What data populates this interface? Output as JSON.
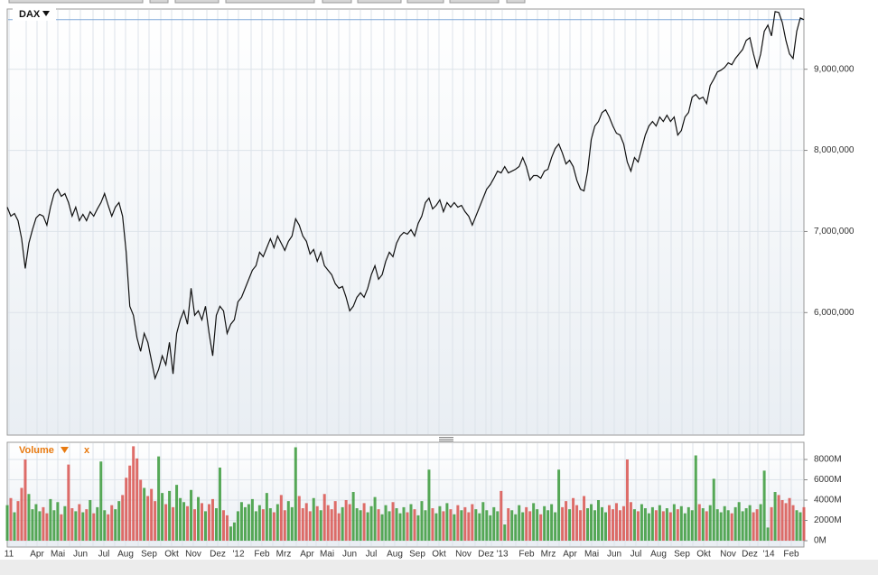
{
  "chart_data": {
    "type": "line",
    "title": "DAX",
    "volume_title": "Volume",
    "close_label": "x",
    "x_labels": [
      "11",
      "Apr",
      "Mai",
      "Jun",
      "Jul",
      "Aug",
      "Sep",
      "Okt",
      "Nov",
      "Dez",
      "'12",
      "Feb",
      "Mrz",
      "Apr",
      "Mai",
      "Jun",
      "Jul",
      "Aug",
      "Sep",
      "Okt",
      "Nov",
      "Dez",
      "'13",
      "Feb",
      "Mrz",
      "Apr",
      "Mai",
      "Jun",
      "Jul",
      "Aug",
      "Sep",
      "Okt",
      "Nov",
      "Dez",
      "'14",
      "Feb"
    ],
    "color": "#111111",
    "up_color": "#3a9a3a",
    "down_color": "#d9534f",
    "grid": true,
    "ylim": [
      4490000,
      9720000
    ],
    "yticks": [
      {
        "value": 6000000,
        "label": "6,000,000"
      },
      {
        "value": 7000000,
        "label": "7,000,000"
      },
      {
        "value": 8000000,
        "label": "8,000,000"
      },
      {
        "value": 9000000,
        "label": "9,000,000"
      }
    ],
    "values": [
      7300000,
      7189000,
      7222000,
      7133000,
      6911000,
      6544000,
      6856000,
      7022000,
      7167000,
      7211000,
      7189000,
      7078000,
      7300000,
      7467000,
      7522000,
      7433000,
      7467000,
      7356000,
      7189000,
      7300000,
      7133000,
      7211000,
      7133000,
      7244000,
      7189000,
      7278000,
      7356000,
      7467000,
      7322000,
      7189000,
      7300000,
      7356000,
      7189000,
      6744000,
      6078000,
      5967000,
      5689000,
      5522000,
      5744000,
      5633000,
      5411000,
      5189000,
      5300000,
      5467000,
      5356000,
      5633000,
      5244000,
      5744000,
      5911000,
      6022000,
      5856000,
      6300000,
      5967000,
      6022000,
      5911000,
      6078000,
      5744000,
      5467000,
      5967000,
      6078000,
      6022000,
      5744000,
      5856000,
      5911000,
      6133000,
      6189000,
      6300000,
      6411000,
      6522000,
      6578000,
      6744000,
      6689000,
      6800000,
      6911000,
      6800000,
      6944000,
      6856000,
      6767000,
      6878000,
      6944000,
      7156000,
      7078000,
      6944000,
      6878000,
      6722000,
      6778000,
      6633000,
      6744000,
      6578000,
      6522000,
      6467000,
      6356000,
      6300000,
      6322000,
      6189000,
      6022000,
      6078000,
      6189000,
      6244000,
      6189000,
      6300000,
      6467000,
      6578000,
      6411000,
      6467000,
      6633000,
      6744000,
      6689000,
      6856000,
      6944000,
      6989000,
      6967000,
      7022000,
      6944000,
      7100000,
      7189000,
      7356000,
      7411000,
      7278000,
      7322000,
      7389000,
      7244000,
      7356000,
      7300000,
      7356000,
      7300000,
      7322000,
      7244000,
      7189000,
      7078000,
      7189000,
      7300000,
      7411000,
      7522000,
      7578000,
      7656000,
      7744000,
      7722000,
      7800000,
      7722000,
      7744000,
      7767000,
      7800000,
      7911000,
      7800000,
      7633000,
      7689000,
      7689000,
      7656000,
      7744000,
      7767000,
      7911000,
      8022000,
      8078000,
      7967000,
      7833000,
      7878000,
      7800000,
      7633000,
      7522000,
      7500000,
      7744000,
      8133000,
      8300000,
      8356000,
      8467000,
      8500000,
      8411000,
      8300000,
      8211000,
      8189000,
      8078000,
      7856000,
      7744000,
      7911000,
      7856000,
      8022000,
      8189000,
      8300000,
      8356000,
      8300000,
      8411000,
      8356000,
      8433000,
      8356000,
      8411000,
      8189000,
      8244000,
      8411000,
      8467000,
      8656000,
      8689000,
      8633000,
      8656000,
      8578000,
      8800000,
      8878000,
      8967000,
      8989000,
      9022000,
      9078000,
      9056000,
      9133000,
      9189000,
      9244000,
      9356000,
      9389000,
      9189000,
      9022000,
      9189000,
      9467000,
      9544000,
      9411000,
      9711000,
      9700000,
      9578000,
      9356000,
      9189000,
      9133000,
      9467000,
      9633000,
      9611000
    ],
    "volume_ylim": [
      -620,
      9690
    ],
    "volume_yticks": [
      {
        "value": 0,
        "label": "0M"
      },
      {
        "value": 2000,
        "label": "2000M"
      },
      {
        "value": 4000,
        "label": "4000M"
      },
      {
        "value": 6000,
        "label": "6000M"
      },
      {
        "value": 8000,
        "label": "8000M"
      }
    ],
    "volume": [
      3500,
      4200,
      2800,
      3900,
      5200,
      8000,
      4600,
      3100,
      3600,
      2900,
      3300,
      2700,
      4100,
      3000,
      3800,
      2600,
      3400,
      7500,
      3200,
      2900,
      3600,
      2800,
      3100,
      4000,
      2700,
      3300,
      7800,
      3000,
      2600,
      3500,
      3100,
      3900,
      4500,
      6200,
      7400,
      9300,
      8100,
      6000,
      5200,
      4400,
      5100,
      3900,
      8300,
      4700,
      3600,
      4900,
      3300,
      5500,
      4200,
      3800,
      3400,
      5000,
      3100,
      4300,
      3700,
      2900,
      3600,
      4100,
      3200,
      7200,
      3000,
      2500,
      1400,
      1800,
      2900,
      3800,
      3300,
      3600,
      4100,
      2900,
      3500,
      3100,
      4700,
      3200,
      2800,
      3600,
      4500,
      3000,
      3900,
      3300,
      9200,
      4400,
      3200,
      3700,
      2900,
      4200,
      3400,
      3000,
      4600,
      3500,
      3100,
      3900,
      2700,
      3300,
      4000,
      3600,
      4800,
      3200,
      3000,
      3700,
      2800,
      3400,
      4300,
      3100,
      2600,
      3500,
      2900,
      3800,
      3200,
      2700,
      3300,
      2800,
      3600,
      3100,
      2500,
      3900,
      3000,
      7000,
      3200,
      2700,
      3400,
      2900,
      3700,
      3100,
      2600,
      3500,
      3000,
      3300,
      2800,
      3600,
      3100,
      2700,
      3800,
      3000,
      2500,
      3300,
      2900,
      4900,
      1600,
      3200,
      3000,
      2600,
      3500,
      2800,
      3300,
      2900,
      3700,
      3100,
      2600,
      3400,
      3000,
      3600,
      2800,
      7000,
      3300,
      3900,
      3100,
      4200,
      3500,
      3000,
      4400,
      3200,
      3600,
      3000,
      4000,
      3300,
      2800,
      3500,
      3100,
      3700,
      3000,
      3400,
      8000,
      3800,
      3100,
      2900,
      3600,
      3200,
      2700,
      3300,
      3000,
      3500,
      2900,
      3200,
      2800,
      3600,
      3100,
      3400,
      2700,
      3300,
      3000,
      8400,
      3600,
      3200,
      2900,
      3500,
      6100,
      3100,
      2800,
      3400,
      3000,
      2700,
      3300,
      3800,
      2900,
      3200,
      3500,
      2800,
      3100,
      3600,
      6900,
      1300,
      3300,
      4800,
      4500,
      4000,
      3700,
      4200,
      3500,
      3000,
      2800,
      3300
    ]
  }
}
